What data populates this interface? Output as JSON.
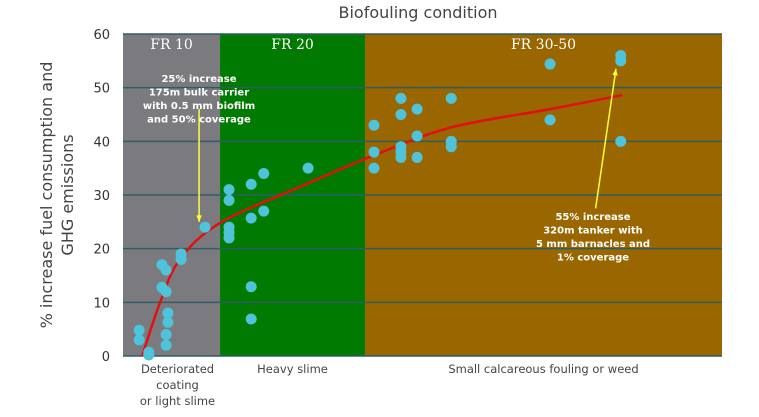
{
  "chart_data": {
    "type": "scatter",
    "title": "Biofouling condition",
    "ylabel": [
      "% increase fuel consumption and",
      "GHG emissions"
    ],
    "xlabel": "",
    "ylim": [
      0,
      60
    ],
    "xlim": [
      0,
      100
    ],
    "yticks": [
      "0",
      "10",
      "20",
      "30",
      "40",
      "50",
      "60"
    ],
    "grid": "horizontal",
    "regions": [
      {
        "label": "FR 10",
        "from": 0,
        "to": 16.2,
        "color": "#7b7b7f",
        "category": [
          "Deteriorated",
          "coating",
          "or light slime"
        ]
      },
      {
        "label": "FR 20",
        "from": 16.2,
        "to": 40.4,
        "color": "#007a00",
        "category": [
          "Heavy slime"
        ]
      },
      {
        "label": "FR 30-50",
        "from": 40.4,
        "to": 100,
        "color": "#996600",
        "category": [
          "Small calcareous fouling or weed"
        ]
      }
    ],
    "points": [
      [
        2.7,
        4.8
      ],
      [
        2.7,
        3.0
      ],
      [
        4.3,
        0.7
      ],
      [
        4.3,
        0.2
      ],
      [
        6.5,
        17
      ],
      [
        7.2,
        16
      ],
      [
        6.5,
        12.8
      ],
      [
        7.2,
        12
      ],
      [
        7.5,
        8
      ],
      [
        7.5,
        6.3
      ],
      [
        7.2,
        4
      ],
      [
        7.2,
        2
      ],
      [
        9.7,
        19
      ],
      [
        9.7,
        18
      ],
      [
        13.7,
        24
      ],
      [
        17.7,
        31
      ],
      [
        17.7,
        29
      ],
      [
        17.7,
        24
      ],
      [
        17.7,
        23
      ],
      [
        17.7,
        22
      ],
      [
        21.4,
        32
      ],
      [
        21.4,
        25.7
      ],
      [
        23.5,
        34
      ],
      [
        23.5,
        27
      ],
      [
        30.9,
        35
      ],
      [
        21.4,
        12.9
      ],
      [
        21.4,
        6.9
      ],
      [
        41.9,
        43
      ],
      [
        41.9,
        38
      ],
      [
        41.9,
        35
      ],
      [
        46.4,
        48
      ],
      [
        46.4,
        45
      ],
      [
        46.4,
        39
      ],
      [
        46.4,
        38
      ],
      [
        46.4,
        37
      ],
      [
        49.1,
        46
      ],
      [
        49.1,
        41
      ],
      [
        49.1,
        37
      ],
      [
        54.8,
        48
      ],
      [
        54.8,
        40
      ],
      [
        54.8,
        39
      ],
      [
        71.3,
        54.4
      ],
      [
        71.3,
        44
      ],
      [
        83.1,
        56
      ],
      [
        83.1,
        55
      ],
      [
        83.1,
        40
      ]
    ],
    "point_color": "#4fc3d9",
    "trend": {
      "color": "#e01010",
      "points": [
        [
          3.2,
          0
        ],
        [
          6.2,
          10
        ],
        [
          9.5,
          18
        ],
        [
          16.2,
          24.8
        ],
        [
          29.5,
          31.5
        ],
        [
          41.9,
          37.4
        ],
        [
          54.8,
          42.6
        ],
        [
          71.3,
          46
        ],
        [
          83.3,
          48.6
        ]
      ]
    },
    "annotations": [
      {
        "lines": [
          "25% increase",
          "175m bulk carrier",
          "with 0.5 mm biofilm",
          "and 50% coverage"
        ],
        "arrow_to": [
          12.7,
          25
        ],
        "arrow_from": [
          12.7,
          46
        ]
      },
      {
        "lines": [
          "55% increase",
          "320m tanker with",
          "5 mm barnacles and",
          "1% coverage"
        ],
        "arrow_to": [
          82.3,
          53.5
        ],
        "arrow_from": [
          78.9,
          27.5
        ]
      }
    ],
    "arrow_color": "#ffff33"
  }
}
